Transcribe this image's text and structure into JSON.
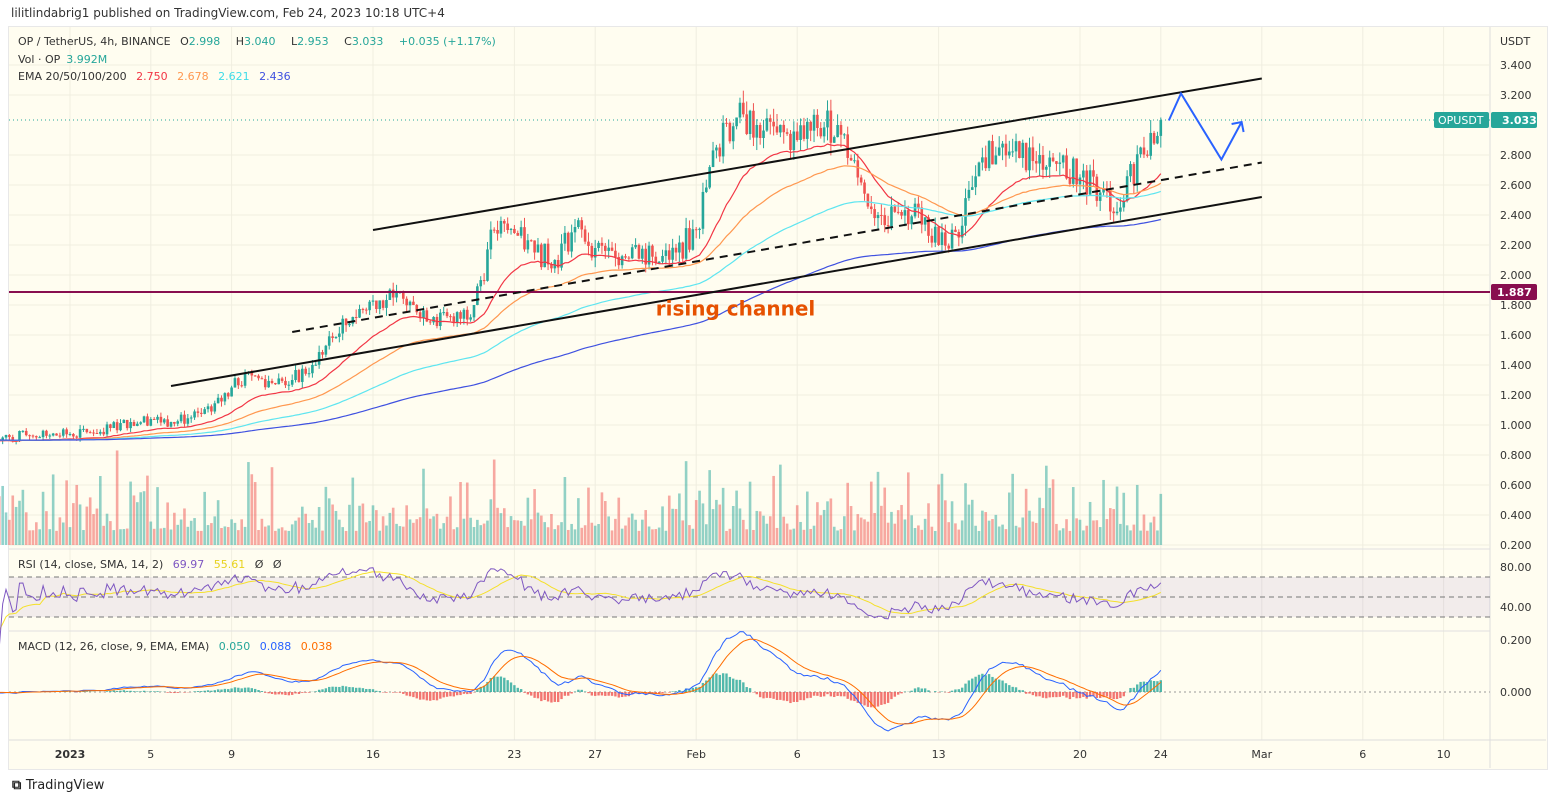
{
  "publisher": "lilitlindabrig1 published on TradingView.com, Feb 24, 2023 10:18 UTC+4",
  "legend": {
    "symbol": "OP / TetherUS, 4h, BINANCE",
    "o_label": "O",
    "o": "2.998",
    "h_label": "H",
    "h": "3.040",
    "l_label": "L",
    "l": "2.953",
    "c_label": "C",
    "c": "3.033",
    "change": "+0.035 (+1.17%)",
    "vol_label": "Vol · OP",
    "vol": "3.992M",
    "ema_label": "EMA 20/50/100/200",
    "ema20": "2.750",
    "ema50": "2.678",
    "ema100": "2.621",
    "ema200": "2.436",
    "rsi_label": "RSI (14, close, SMA, 14, 2)",
    "rsi": "69.97",
    "rsi_sma": "55.61",
    "rsi_x1": "Ø",
    "rsi_x2": "Ø",
    "macd_label": "MACD (12, 26, close, 9, EMA, EMA)",
    "macd_hist": "0.050",
    "macd": "0.088",
    "macd_signal": "0.038"
  },
  "colors": {
    "up": "#26a69a",
    "down": "#ef5350",
    "ema20": "#f23645",
    "ema50": "#ff9850",
    "ema100": "#5ee5f0",
    "ema200": "#3f51e0",
    "rsi": "#7e57c2",
    "rsi_sma": "#f5e02a",
    "macd": "#2962ff",
    "signal": "#ff6d00",
    "hline": "#880e4f",
    "arrow": "#2962ff",
    "annotation": "#e65100"
  },
  "chart_data": {
    "type": "candlestick",
    "price_axis": {
      "unit": "USDT",
      "ticks": [
        "3.400",
        "3.200",
        "2.800",
        "2.600",
        "2.400",
        "2.200",
        "2.000",
        "1.800",
        "1.600",
        "1.400",
        "1.200",
        "1.000",
        "0.800",
        "0.600",
        "0.400",
        "0.200"
      ],
      "last_label": "OPUSDT",
      "last_value": "3.033",
      "hline_value": "1.887"
    },
    "time_axis": {
      "ticks": [
        "2023",
        "5",
        "9",
        "16",
        "23",
        "27",
        "Feb",
        "6",
        "13",
        "20",
        "24",
        "Mar",
        "6",
        "10"
      ]
    },
    "start_date": "2022-12-28",
    "daily_close": [
      0.93,
      0.92,
      0.93,
      0.93,
      0.94,
      0.95,
      0.98,
      1.02,
      1.04,
      1.02,
      1.05,
      1.09,
      1.25,
      1.33,
      1.28,
      1.3,
      1.4,
      1.58,
      1.72,
      1.83,
      1.85,
      1.8,
      1.72,
      1.68,
      1.8,
      2.3,
      2.28,
      2.15,
      2.1,
      2.32,
      2.18,
      2.12,
      2.2,
      2.08,
      2.15,
      2.3,
      2.85,
      3.05,
      3.0,
      2.95,
      2.9,
      2.98,
      3.0,
      2.65,
      2.4,
      2.42,
      2.45,
      2.2,
      2.25,
      2.75,
      2.85,
      2.78,
      2.8,
      2.75,
      2.65,
      2.55,
      2.45,
      2.85,
      3.033
    ],
    "hline": 1.887,
    "lines": [
      {
        "style": "solid",
        "from": [
          "2023-01-06",
          1.26
        ],
        "to": [
          "2023-03-01",
          3.31
        ]
      },
      {
        "style": "solid",
        "from": [
          "2023-01-16",
          2.3
        ],
        "to": [
          "2023-01-16",
          2.3
        ]
      },
      {
        "style": "solid",
        "from": [
          "2023-01-06",
          1.26
        ],
        "to": [
          "2023-03-01",
          2.52
        ]
      },
      {
        "style": "dashed",
        "from": [
          "2023-01-12",
          1.62
        ],
        "to": [
          "2023-03-01",
          2.75
        ]
      }
    ],
    "upper_channel": {
      "from": [
        "2023-01-16",
        2.3
      ],
      "to": [
        "2023-03-01",
        3.31
      ]
    },
    "arrow_path": [
      [
        "2023-02-24",
        3.03
      ],
      [
        "2023-02-25",
        3.21
      ],
      [
        "2023-02-27",
        2.77
      ],
      [
        "2023-02-28",
        3.02
      ]
    ],
    "annotation": "rising channel",
    "annotation_at": [
      "2023-01-30",
      1.73
    ],
    "rsi_axis": [
      "80.00",
      "40.00"
    ],
    "macd_axis": [
      "0.200",
      "0.000"
    ]
  },
  "footer": "TradingView"
}
